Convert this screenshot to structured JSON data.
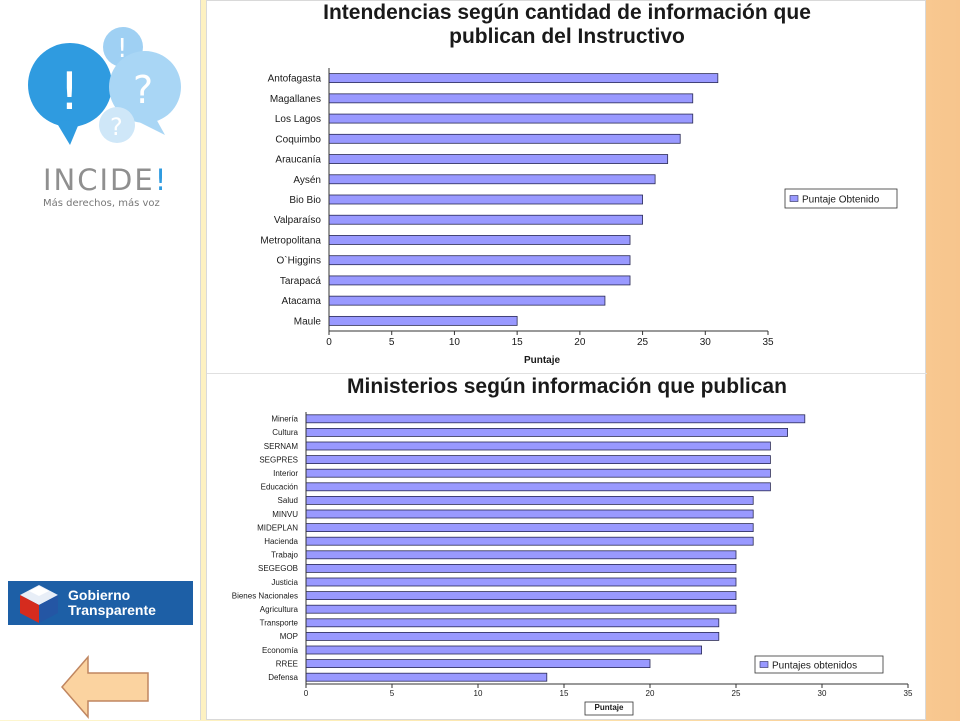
{
  "sidebar": {
    "logo": {
      "wordmark": "INCIDE",
      "wordmark_bang": "!",
      "tagline": "Más derechos, más voz",
      "colors": {
        "bubble_dark": "#2f9be0",
        "bubble_light": "#9fd0f3",
        "bubble_mid": "#6fb8ea"
      }
    },
    "gobierno_logo": {
      "line1": "Gobierno",
      "line2": "Transparente",
      "color": "#1d5fa6"
    },
    "back_button_icon": "left-arrow-icon"
  },
  "chart_data": [
    {
      "type": "bar",
      "orientation": "horizontal",
      "title_line1": "Intendencias según cantidad de información que",
      "title_line2": "publican del Instructivo",
      "categories": [
        "Antofagasta",
        "Magallanes",
        "Los Lagos",
        "Coquimbo",
        "Araucanía",
        "Aysén",
        "Bio Bio",
        "Valparaíso",
        "Metropolitana",
        "O`Higgins",
        "Tarapacá",
        "Atacama",
        "Maule"
      ],
      "series": [
        {
          "name": "Puntaje Obtenido",
          "values": [
            31,
            29,
            29,
            28,
            27,
            26,
            25,
            25,
            24,
            24,
            24,
            22,
            15
          ]
        }
      ],
      "xlabel": "Puntaje",
      "ylabel": "",
      "xlim": [
        0,
        35
      ],
      "xticks": [
        "0",
        "5",
        "10",
        "15",
        "20",
        "25",
        "30",
        "35"
      ],
      "legend_position": "right",
      "grid": false,
      "bar_color": "#9999ff"
    },
    {
      "type": "bar",
      "orientation": "horizontal",
      "title_line1": "Ministerios según información que publican",
      "categories": [
        "Minería",
        "Cultura",
        "SERNAM",
        "SEGPRES",
        "Interior",
        "Educación",
        "Salud",
        "MINVU",
        "MIDEPLAN",
        "Hacienda",
        "Trabajo",
        "SEGEGOB",
        "Justicia",
        "Bienes Nacionales",
        "Agricultura",
        "Transporte",
        "MOP",
        "Economía",
        "RREE",
        "Defensa"
      ],
      "series": [
        {
          "name": "Puntajes obtenidos",
          "values": [
            29,
            28,
            27,
            27,
            27,
            27,
            26,
            26,
            26,
            26,
            25,
            25,
            25,
            25,
            25,
            24,
            24,
            23,
            20,
            14
          ]
        }
      ],
      "xlabel": "Puntaje",
      "ylabel": "",
      "xlim": [
        0,
        35
      ],
      "xticks": [
        "0",
        "5",
        "10",
        "15",
        "20",
        "25",
        "30",
        "35"
      ],
      "legend_position": "bottom-right",
      "grid": false,
      "bar_color": "#9999ff"
    }
  ]
}
